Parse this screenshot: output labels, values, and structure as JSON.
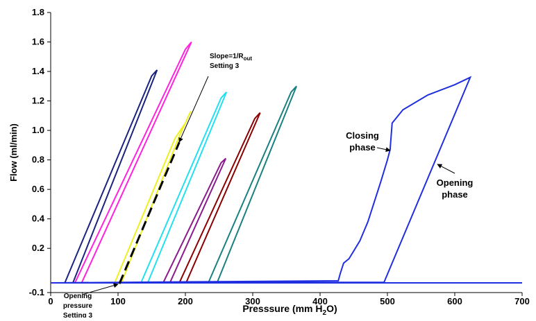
{
  "chart_data": {
    "type": "line",
    "y_label": "Flow (ml/min)",
    "x_label": [
      "Presssure (mm H",
      "2",
      "O)"
    ],
    "xlim": [
      0,
      700
    ],
    "xticks": [
      0,
      100,
      200,
      300,
      400,
      500,
      600,
      700
    ],
    "ylim": [
      -0.1,
      1.8
    ],
    "yticks": [
      -0.1,
      0.2,
      0.4,
      0.6,
      0.8,
      {
        "value": 1,
        "label": "1.0"
      },
      1.2,
      1.4,
      1.6,
      1.8
    ],
    "series": [
      {
        "color": "#1a237e",
        "x": [
          21,
          33,
          158,
          150,
          21
        ],
        "values": [
          -0.034,
          -0.034,
          1.41,
          1.37,
          -0.034
        ]
      },
      {
        "color": "#ff22dd",
        "x": [
          36,
          46,
          209,
          200,
          36
        ],
        "values": [
          -0.034,
          -0.034,
          1.6,
          1.55,
          -0.034
        ]
      },
      {
        "color": "#f0f020",
        "x": [
          95,
          105,
          190,
          208,
          200,
          185,
          95
        ],
        "values": [
          -0.034,
          -0.034,
          0.95,
          1.13,
          1.05,
          0.95,
          -0.034
        ]
      },
      {
        "color": "#22e0f0",
        "x": [
          134,
          144,
          261,
          253,
          134
        ],
        "values": [
          -0.034,
          -0.034,
          1.26,
          1.22,
          -0.034
        ]
      },
      {
        "color": "#8b1a8b",
        "x": [
          167,
          177,
          260,
          253,
          167
        ],
        "values": [
          -0.034,
          -0.034,
          0.81,
          0.78,
          -0.034
        ]
      },
      {
        "color": "#8b0000",
        "x": [
          191,
          201,
          311,
          303,
          191
        ],
        "values": [
          -0.034,
          -0.034,
          1.12,
          1.08,
          -0.034
        ]
      },
      {
        "color": "#1a8080",
        "x": [
          234,
          247,
          365,
          357,
          234
        ],
        "values": [
          -0.034,
          -0.034,
          1.3,
          1.26,
          -0.034
        ]
      },
      {
        "color": "#1f2fe0",
        "x": [
          0,
          495,
          623,
          600,
          560,
          523,
          507,
          504,
          500,
          490,
          471,
          459,
          443,
          435,
          430,
          427,
          0,
          700
        ],
        "values": [
          -0.034,
          -0.03,
          1.36,
          1.31,
          1.24,
          1.14,
          1.05,
          0.87,
          0.8,
          0.65,
          0.38,
          0.25,
          0.13,
          0.1,
          0.03,
          -0.02,
          -0.034,
          -0.034
        ]
      },
      {
        "color": "#000000",
        "dashed": true,
        "x": [
          102,
          191
        ],
        "values": [
          -0.04,
          0.92
        ]
      }
    ],
    "annotations": [
      {
        "lines": [
          [
            "Slope=1/R",
            "out"
          ],
          [
            "Setting 3"
          ]
        ]
      },
      {
        "lines": [
          [
            "Opening"
          ],
          [
            "pressure"
          ],
          [
            "Setting 3"
          ]
        ]
      },
      {
        "lines": [
          [
            "Closing"
          ],
          [
            "phase"
          ]
        ]
      },
      {
        "lines": [
          [
            "Opening"
          ],
          [
            "phase"
          ]
        ]
      }
    ]
  }
}
